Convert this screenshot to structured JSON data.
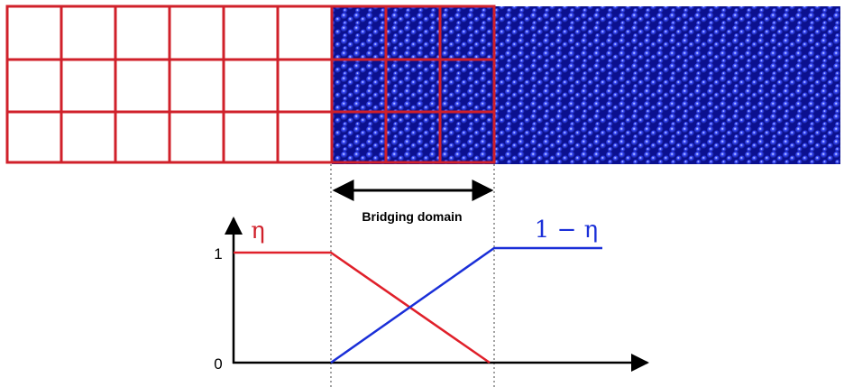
{
  "diagram": {
    "weight_label": "η",
    "complement_label": "1 − η",
    "region_label": "Bridging domain",
    "axis_tick_top": "1",
    "axis_tick_bottom": "0"
  }
}
